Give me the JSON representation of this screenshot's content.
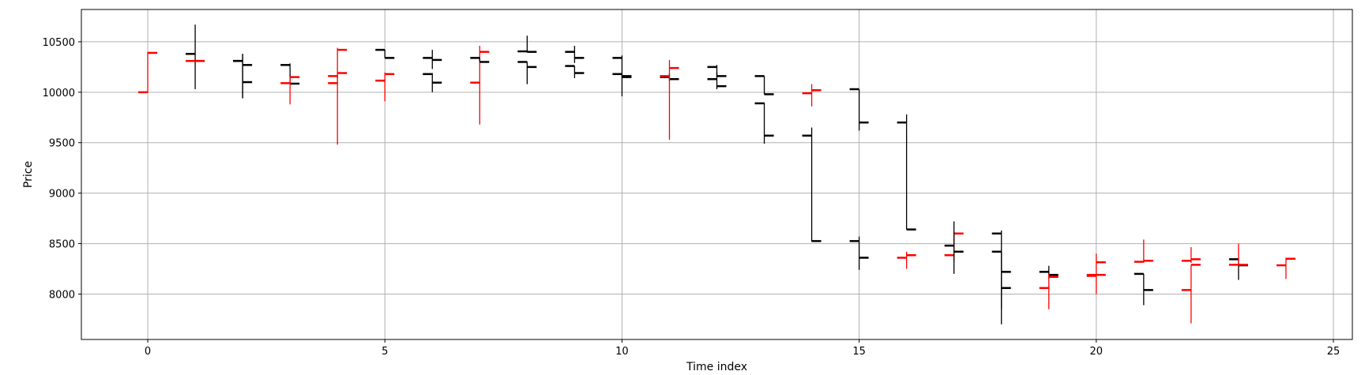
{
  "chart_data": {
    "type": "ohlc",
    "xlabel": "Time index",
    "ylabel": "Price",
    "xlim": [
      -1.4,
      25.4
    ],
    "ylim": [
      7550,
      10820
    ],
    "xticks": [
      0,
      5,
      10,
      15,
      20,
      25
    ],
    "yticks": [
      8000,
      8500,
      9000,
      9500,
      10000,
      10500
    ],
    "grid": true,
    "colors": {
      "up": "#ff0000",
      "down": "#000000"
    },
    "bars": [
      {
        "x": 0,
        "open": 10000,
        "high": 10400,
        "low": 9995,
        "close": 10390
      },
      {
        "x": 1,
        "open": 10380,
        "high": 10670,
        "low": 10030,
        "close": 10310
      },
      {
        "x": 2,
        "open": 10310,
        "high": 10380,
        "low": 9940,
        "close": 10270
      },
      {
        "x": 3,
        "open": 10270,
        "high": 10285,
        "low": 10080,
        "close": 10085
      },
      {
        "x": 4,
        "open": 10090,
        "high": 10195,
        "low": 9480,
        "close": 10190
      },
      {
        "x": 5,
        "open": 10115,
        "high": 10195,
        "low": 9910,
        "close": 10180
      },
      {
        "x": 6,
        "open": 10180,
        "high": 10190,
        "low": 10000,
        "close": 10095
      },
      {
        "x": 7,
        "open": 10095,
        "high": 10460,
        "low": 9680,
        "close": 10400
      },
      {
        "x": 8,
        "open": 10405,
        "high": 10560,
        "low": 10395,
        "close": 10400
      },
      {
        "x": 9,
        "open": 10400,
        "high": 10460,
        "low": 10290,
        "close": 10340
      },
      {
        "x": 10,
        "open": 10340,
        "high": 10365,
        "low": 9960,
        "close": 10150
      },
      {
        "x": 11,
        "open": 10150,
        "high": 10185,
        "low": 10110,
        "close": 10130
      },
      {
        "x": 12,
        "open": 10130,
        "high": 10200,
        "low": 10030,
        "close": 10060
      },
      {
        "x": 13,
        "open": 9890,
        "high": 9895,
        "low": 9490,
        "close": 9570
      },
      {
        "x": 14,
        "open": 9570,
        "high": 9650,
        "low": 8520,
        "close": 8525
      },
      {
        "x": 15,
        "open": 8525,
        "high": 8570,
        "low": 8240,
        "close": 8360
      },
      {
        "x": 16,
        "open": 8360,
        "high": 8420,
        "low": 8250,
        "close": 8385
      },
      {
        "x": 17,
        "open": 8385,
        "high": 8615,
        "low": 8320,
        "close": 8600
      },
      {
        "x": 18,
        "open": 8600,
        "high": 8630,
        "low": 7850,
        "close": 8220
      },
      {
        "x": 19,
        "open": 8220,
        "high": 8280,
        "low": 8150,
        "close": 8190
      },
      {
        "x": 20,
        "open": 8180,
        "high": 8400,
        "low": 8000,
        "close": 8315
      },
      {
        "x": 21,
        "open": 8320,
        "high": 8540,
        "low": 8310,
        "close": 8330
      },
      {
        "x": 22,
        "open": 8330,
        "high": 8465,
        "low": 8310,
        "close": 8345
      },
      {
        "x": 23,
        "open": 8345,
        "high": 8360,
        "low": 8140,
        "close": 8285
      },
      {
        "x": 24,
        "open": 8285,
        "high": 8360,
        "low": 8150,
        "close": 8350
      },
      {
        "x": 1,
        "open": 10310,
        "high": 10310,
        "low": 10310,
        "close": 10310
      },
      {
        "x": 2,
        "open": 10310,
        "high": 10380,
        "low": 9940,
        "close": 10100
      },
      {
        "x": 3,
        "open": 10090,
        "high": 10150,
        "low": 9880,
        "close": 10150
      },
      {
        "x": 4,
        "open": 10160,
        "high": 10440,
        "low": 10140,
        "close": 10420
      },
      {
        "x": 5,
        "open": 10420,
        "high": 10420,
        "low": 10340,
        "close": 10340
      },
      {
        "x": 6,
        "open": 10340,
        "high": 10420,
        "low": 10230,
        "close": 10320
      },
      {
        "x": 7,
        "open": 10340,
        "high": 10340,
        "low": 10300,
        "close": 10300
      },
      {
        "x": 8,
        "open": 10300,
        "high": 10300,
        "low": 10080,
        "close": 10250
      },
      {
        "x": 9,
        "open": 10260,
        "high": 10260,
        "low": 10140,
        "close": 10190
      },
      {
        "x": 10,
        "open": 10180,
        "high": 10180,
        "low": 10150,
        "close": 10160
      },
      {
        "x": 11,
        "open": 10160,
        "high": 10320,
        "low": 9530,
        "close": 10240
      },
      {
        "x": 12,
        "open": 10250,
        "high": 10270,
        "low": 10150,
        "close": 10160
      },
      {
        "x": 13,
        "open": 10160,
        "high": 10160,
        "low": 9980,
        "close": 9980
      },
      {
        "x": 14,
        "open": 9990,
        "high": 10080,
        "low": 9860,
        "close": 10020
      },
      {
        "x": 15,
        "open": 10030,
        "high": 10030,
        "low": 9620,
        "close": 9700
      },
      {
        "x": 16,
        "open": 9700,
        "high": 9780,
        "low": 8640,
        "close": 8640
      },
      {
        "x": 17,
        "open": 8480,
        "high": 8720,
        "low": 8200,
        "close": 8420
      },
      {
        "x": 18,
        "open": 8420,
        "high": 8420,
        "low": 7700,
        "close": 8060
      },
      {
        "x": 19,
        "open": 8060,
        "high": 8200,
        "low": 7850,
        "close": 8170
      },
      {
        "x": 20,
        "open": 8190,
        "high": 8190,
        "low": 8180,
        "close": 8190
      },
      {
        "x": 21,
        "open": 8200,
        "high": 8200,
        "low": 7890,
        "close": 8040
      },
      {
        "x": 22,
        "open": 8040,
        "high": 8290,
        "low": 7710,
        "close": 8290
      },
      {
        "x": 23,
        "open": 8290,
        "high": 8500,
        "low": 8280,
        "close": 8290
      }
    ]
  }
}
